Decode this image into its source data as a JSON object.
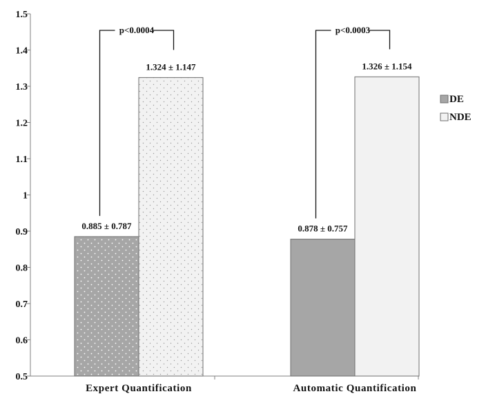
{
  "chart_data": {
    "type": "bar",
    "categories": [
      "Expert Quantification",
      "Automatic Quantification"
    ],
    "series": [
      {
        "name": "DE",
        "values": [
          0.885,
          0.878
        ],
        "color": "#a6a6a6",
        "pattern": [
          "dots",
          "solid"
        ]
      },
      {
        "name": "NDE",
        "values": [
          1.324,
          1.326
        ],
        "color": "#f2f2f2",
        "pattern": [
          "dots",
          "solid"
        ]
      }
    ],
    "data_labels": [
      [
        "0.885 ± 0.787",
        "0.878 ± 0.757"
      ],
      [
        "1.324 ± 1.147",
        "1.326 ± 1.154"
      ]
    ],
    "p_values": [
      "p<0.0004",
      "p<0.0003"
    ],
    "yticks": [
      "0.5",
      "0.6",
      "0.7",
      "0.8",
      "0.9",
      "1",
      "1.1",
      "1.2",
      "1.3",
      "1.4",
      "1.5"
    ],
    "ylim": [
      0.5,
      1.5
    ],
    "legend_position": "right",
    "grid": false,
    "title": "",
    "xlabel": "",
    "ylabel": ""
  }
}
